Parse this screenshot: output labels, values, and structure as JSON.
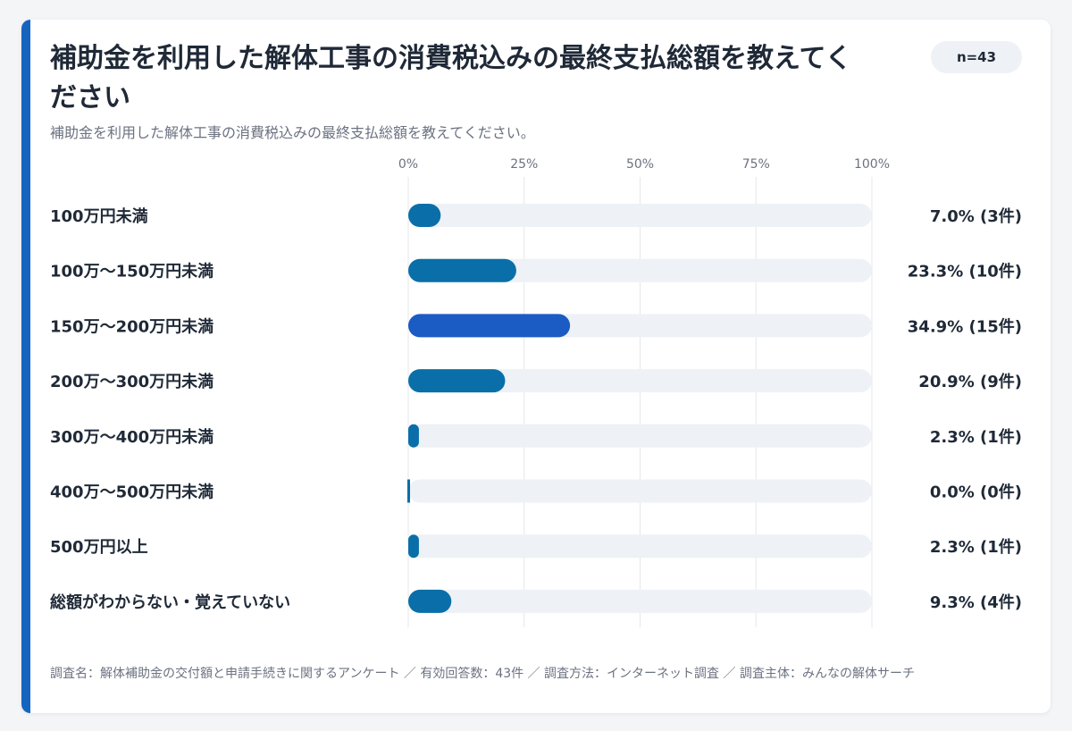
{
  "title": "補助金を利用した解体工事の消費税込みの最終支払総額を教えてください",
  "subtitle": "補助金を利用した解体工事の消費税込みの最終支払総額を教えてください。",
  "n_badge": "n=43",
  "footer": "調査名：解体補助金の交付額と申請手続きに関するアンケート ／ 有効回答数：43件 ／ 調査方法：インターネット調査 ／ 調査主体：みんなの解体サーチ",
  "colors": {
    "accent": "#1565c0",
    "bar": "#0a6fa8",
    "bar_highlight": "#1a5bc4",
    "track": "#eef1f5",
    "grid": "#e5e7eb"
  },
  "chart_data": {
    "type": "bar",
    "orientation": "horizontal",
    "title": "補助金を利用した解体工事の消費税込みの最終支払総額を教えてください",
    "xlabel": "",
    "ylabel": "",
    "xlim": [
      0,
      100
    ],
    "x_ticks": [
      "0%",
      "25%",
      "50%",
      "75%",
      "100%"
    ],
    "grid": true,
    "categories": [
      "100万円未満",
      "100万～150万円未満",
      "150万～200万円未満",
      "200万～300万円未満",
      "300万～400万円未満",
      "400万～500万円未満",
      "500万円以上",
      "総額がわからない・覚えていない"
    ],
    "values": [
      7.0,
      23.3,
      34.9,
      20.9,
      2.3,
      0.0,
      2.3,
      9.3
    ],
    "counts": [
      3,
      10,
      15,
      9,
      1,
      0,
      1,
      4
    ],
    "value_labels": [
      "7.0% (3件)",
      "23.3% (10件)",
      "34.9% (15件)",
      "20.9% (9件)",
      "2.3% (1件)",
      "0.0% (0件)",
      "2.3% (1件)",
      "9.3% (4件)"
    ],
    "highlight_index": 2
  }
}
